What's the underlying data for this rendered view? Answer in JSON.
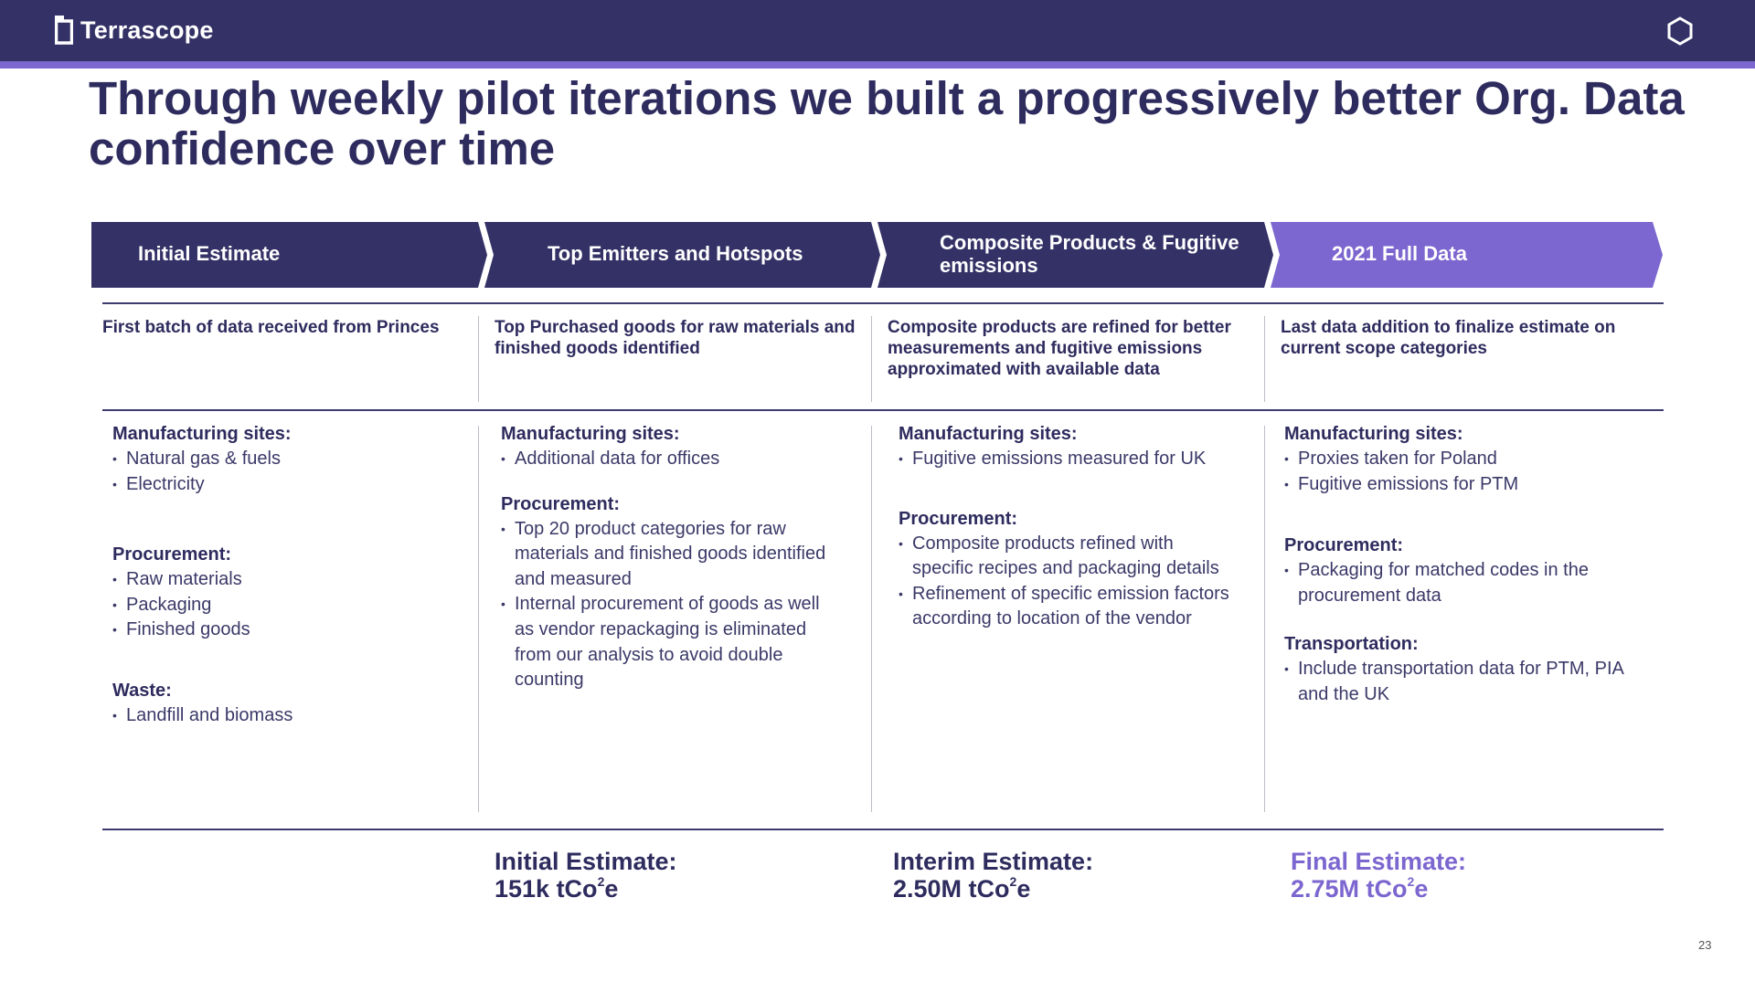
{
  "header": {
    "brand": "Terrascope",
    "colors": {
      "bar": "#333166",
      "accent": "#7c66cf",
      "text": "#2e2c5e"
    },
    "right_icon": "hexagon-icon"
  },
  "title": "Through weekly pilot iterations we built a progressively better Org. Data confidence over time",
  "stages": [
    {
      "label": "Initial Estimate",
      "subtitle": "First batch of data received from Princes",
      "sections": [
        {
          "heading": "Manufacturing sites:",
          "items": [
            "Natural gas & fuels",
            "Electricity"
          ]
        },
        {
          "heading": "Procurement:",
          "items": [
            "Raw materials",
            "Packaging",
            "Finished goods"
          ]
        },
        {
          "heading": "Waste:",
          "items": [
            "Landfill and biomass"
          ]
        }
      ]
    },
    {
      "label": "Top Emitters and Hotspots",
      "subtitle": "Top Purchased goods for raw materials and finished goods identified",
      "sections": [
        {
          "heading": "Manufacturing sites:",
          "items": [
            "Additional data for offices"
          ]
        },
        {
          "heading": "Procurement:",
          "items": [
            "Top 20 product categories for raw materials and finished goods identified and measured",
            "Internal procurement of goods as well as vendor repackaging is eliminated from our analysis to avoid double counting"
          ]
        }
      ],
      "estimate": {
        "label": "Initial Estimate:",
        "value": "151k tCo",
        "sup": "2",
        "suffix": "e"
      }
    },
    {
      "label": "Composite Products & Fugitive emissions",
      "subtitle": "Composite products are refined for better measurements and fugitive emissions approximated with available data",
      "sections": [
        {
          "heading": "Manufacturing sites:",
          "items": [
            "Fugitive emissions measured for UK"
          ]
        },
        {
          "heading": "Procurement:",
          "items": [
            "Composite products refined with specific recipes and packaging details",
            "Refinement of specific emission factors according to location of the vendor"
          ]
        }
      ],
      "estimate": {
        "label": "Interim Estimate:",
        "value": "2.50M tCo",
        "sup": "2",
        "suffix": "e"
      }
    },
    {
      "label": "2021 Full Data",
      "subtitle": "Last data addition to finalize estimate on current scope categories",
      "sections": [
        {
          "heading": "Manufacturing sites:",
          "items": [
            "Proxies taken for Poland",
            "Fugitive emissions for PTM"
          ]
        },
        {
          "heading": "Procurement:",
          "items": [
            "Packaging for matched codes in the procurement data"
          ]
        },
        {
          "heading": "Transportation:",
          "items": [
            "Include transportation data for PTM, PIA and the UK"
          ]
        }
      ],
      "estimate": {
        "label": "Final Estimate:",
        "value": "2.75M tCo",
        "sup": "2",
        "suffix": "e"
      }
    }
  ],
  "page_number": "23"
}
